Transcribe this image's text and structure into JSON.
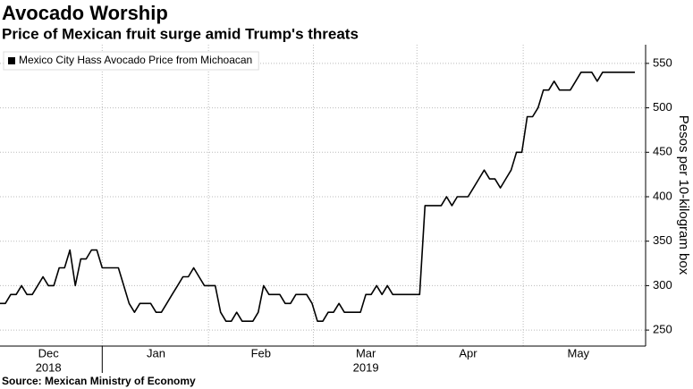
{
  "chart_data": {
    "type": "line",
    "title": "Avocado Worship",
    "subtitle": "Price of Mexican fruit surge amid Trump's threats",
    "y_label": "Pesos per 10-kilogram box",
    "source": "Source: Mexican Ministry of Economy",
    "legend": "top-left",
    "grid": true,
    "xlim": [
      0,
      120
    ],
    "xticks": [
      {
        "value": 9,
        "label": "Dec"
      },
      {
        "value": 29,
        "label": "Jan"
      },
      {
        "value": 48.5,
        "label": "Feb"
      },
      {
        "value": 68,
        "label": "Mar"
      },
      {
        "value": 87,
        "label": "Apr"
      },
      {
        "value": 107.5,
        "label": "May"
      }
    ],
    "x_group_labels": [
      {
        "value": 9,
        "label": "2018"
      },
      {
        "value": 68,
        "label": "2019"
      }
    ],
    "ylim": [
      232,
      571
    ],
    "yticks": [
      250,
      300,
      350,
      400,
      450,
      500,
      550
    ],
    "series": [
      {
        "name": "Mexico City Hass Avocado Price from Michoacan",
        "color": "#000000",
        "values": [
          280,
          280,
          290,
          290,
          300,
          290,
          290,
          300,
          310,
          300,
          300,
          320,
          320,
          340,
          300,
          330,
          330,
          340,
          340,
          320,
          320,
          320,
          320,
          300,
          280,
          270,
          280,
          280,
          280,
          270,
          270,
          280,
          290,
          300,
          310,
          310,
          320,
          310,
          300,
          300,
          300,
          270,
          260,
          260,
          270,
          260,
          260,
          260,
          270,
          300,
          290,
          290,
          290,
          280,
          280,
          290,
          290,
          290,
          280,
          260,
          260,
          270,
          270,
          280,
          270,
          270,
          270,
          270,
          290,
          290,
          300,
          290,
          300,
          290,
          290,
          290,
          290,
          290,
          290,
          390,
          390,
          390,
          390,
          400,
          390,
          400,
          400,
          400,
          410,
          420,
          430,
          420,
          420,
          410,
          420,
          430,
          450,
          450,
          490,
          490,
          500,
          520,
          520,
          530,
          520,
          520,
          520,
          530,
          540,
          540,
          540,
          530,
          540,
          540,
          540,
          540,
          540,
          540,
          540
        ]
      }
    ]
  }
}
